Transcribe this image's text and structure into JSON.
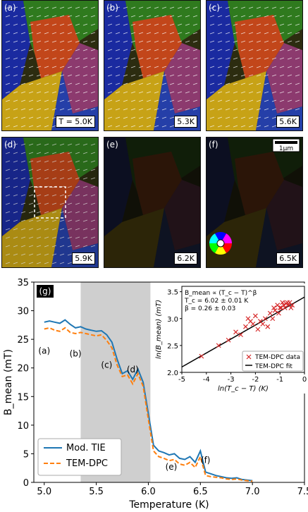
{
  "panels": [
    {
      "id": "a",
      "label": "(a)",
      "temp": "T = 5.0K",
      "state": "ordered"
    },
    {
      "id": "b",
      "label": "(b)",
      "temp": "5.3K",
      "state": "ordered"
    },
    {
      "id": "c",
      "label": "(c)",
      "temp": "5.6K",
      "state": "ordered"
    },
    {
      "id": "d",
      "label": "(d)",
      "temp": "5.9K",
      "state": "partial"
    },
    {
      "id": "e",
      "label": "(e)",
      "temp": "6.2K",
      "state": "faint"
    },
    {
      "id": "f",
      "label": "(f)",
      "temp": "6.5K",
      "state": "faint"
    }
  ],
  "scalebar": "1μm",
  "chart_data": [
    {
      "type": "line",
      "panel_label": "(g)",
      "xlabel": "Temperature (K)",
      "ylabel": "B_mean (mT)",
      "xlim": [
        4.9,
        7.5
      ],
      "ylim": [
        0,
        35
      ],
      "xticks": [
        5.0,
        5.5,
        6.0,
        6.5,
        7.0,
        7.5
      ],
      "yticks": [
        0,
        5,
        10,
        15,
        20,
        25,
        30,
        35
      ],
      "shaded_region": [
        5.35,
        6.02
      ],
      "series": [
        {
          "name": "Mod. TIE",
          "color": "#1f77b4",
          "style": "solid",
          "x": [
            5.0,
            5.05,
            5.1,
            5.15,
            5.2,
            5.25,
            5.3,
            5.35,
            5.4,
            5.45,
            5.5,
            5.55,
            5.6,
            5.65,
            5.7,
            5.75,
            5.8,
            5.85,
            5.9,
            5.95,
            6.0,
            6.05,
            6.1,
            6.15,
            6.2,
            6.25,
            6.3,
            6.35,
            6.4,
            6.45,
            6.5,
            6.55,
            6.6,
            6.65,
            6.7,
            6.75,
            6.8,
            6.85,
            6.9,
            6.95,
            7.0
          ],
          "y": [
            28.0,
            28.2,
            28.0,
            27.8,
            28.4,
            27.6,
            27.0,
            27.2,
            26.8,
            26.6,
            26.4,
            26.5,
            25.8,
            24.5,
            21.5,
            19.0,
            19.5,
            18.0,
            19.8,
            17.5,
            12.0,
            6.5,
            5.5,
            5.2,
            4.8,
            5.0,
            4.2,
            4.0,
            4.5,
            3.5,
            5.5,
            1.8,
            1.5,
            1.2,
            1.0,
            0.8,
            0.7,
            0.8,
            0.5,
            0.4,
            0.3
          ]
        },
        {
          "name": "TEM-DPC",
          "color": "#ff7f0e",
          "style": "dashed",
          "x": [
            5.0,
            5.05,
            5.1,
            5.15,
            5.2,
            5.25,
            5.3,
            5.35,
            5.4,
            5.45,
            5.5,
            5.55,
            5.6,
            5.65,
            5.7,
            5.75,
            5.8,
            5.85,
            5.9,
            5.95,
            6.0,
            6.05,
            6.1,
            6.15,
            6.2,
            6.25,
            6.3,
            6.35,
            6.4,
            6.45,
            6.5,
            6.55,
            6.6,
            6.65,
            6.7,
            6.75,
            6.8,
            6.85,
            6.9,
            6.95,
            7.0
          ],
          "y": [
            26.8,
            27.0,
            26.6,
            26.4,
            27.0,
            26.2,
            26.0,
            26.2,
            26.0,
            25.8,
            25.6,
            25.8,
            24.8,
            23.5,
            20.5,
            18.5,
            18.8,
            17.2,
            19.0,
            16.8,
            11.0,
            5.5,
            4.5,
            4.2,
            3.8,
            4.0,
            3.2,
            3.0,
            3.5,
            2.6,
            4.5,
            1.2,
            1.0,
            0.9,
            0.8,
            0.6,
            0.5,
            0.6,
            0.4,
            0.3,
            0.2
          ]
        }
      ],
      "annotations": [
        {
          "text": "(a)",
          "x": 5.0,
          "y": 22.5
        },
        {
          "text": "(b)",
          "x": 5.3,
          "y": 22.0
        },
        {
          "text": "(c)",
          "x": 5.6,
          "y": 20.0
        },
        {
          "text": "(d)",
          "x": 5.85,
          "y": 19.2
        },
        {
          "text": "(e)",
          "x": 6.22,
          "y": 2.2
        },
        {
          "text": "(f)",
          "x": 6.55,
          "y": 3.4
        }
      ],
      "legend": {
        "position": "bottom-left",
        "entries": [
          "Mod. TIE",
          "TEM-DPC"
        ]
      }
    },
    {
      "type": "scatter",
      "position": "inset-top-right",
      "xlabel": "ln(T_c − T) (K)",
      "ylabel": "ln(B_mean) (mT)",
      "xlim": [
        -5,
        0
      ],
      "ylim": [
        2.0,
        3.6
      ],
      "xticks": [
        -5,
        -4,
        -3,
        -2,
        -1,
        0
      ],
      "yticks": [
        2.0,
        2.5,
        3.0,
        3.5
      ],
      "annotation_lines": [
        "B_mean ∝ (T_c − T)^β",
        "T_c = 6.02 ± 0.01 K",
        "β = 0.26 ± 0.03"
      ],
      "series": [
        {
          "name": "TEM-DPC data",
          "marker": "x",
          "color": "#d62728",
          "x": [
            -4.2,
            -3.5,
            -3.1,
            -2.8,
            -2.6,
            -2.4,
            -2.3,
            -2.2,
            -2.1,
            -2.0,
            -1.9,
            -1.8,
            -1.7,
            -1.6,
            -1.5,
            -1.4,
            -1.3,
            -1.25,
            -1.2,
            -1.1,
            -1.05,
            -1.0,
            -0.95,
            -0.9,
            -0.85,
            -0.8,
            -0.75,
            -0.7,
            -0.65,
            -0.6,
            -0.55,
            -0.5
          ],
          "y": [
            2.3,
            2.5,
            2.6,
            2.75,
            2.7,
            2.85,
            3.0,
            2.95,
            2.9,
            3.05,
            2.8,
            2.95,
            2.9,
            3.0,
            2.85,
            3.1,
            3.0,
            3.2,
            3.15,
            3.25,
            3.1,
            3.2,
            3.2,
            3.3,
            3.25,
            3.2,
            3.28,
            3.3,
            3.25,
            3.3,
            3.2,
            3.25
          ]
        },
        {
          "name": "TEM-DPC fit",
          "type": "line",
          "color": "#000000",
          "x": [
            -5,
            0
          ],
          "y": [
            2.1,
            3.4
          ]
        }
      ],
      "legend": {
        "position": "bottom-right",
        "entries": [
          "TEM-DPC data",
          "TEM-DPC fit"
        ]
      }
    }
  ]
}
